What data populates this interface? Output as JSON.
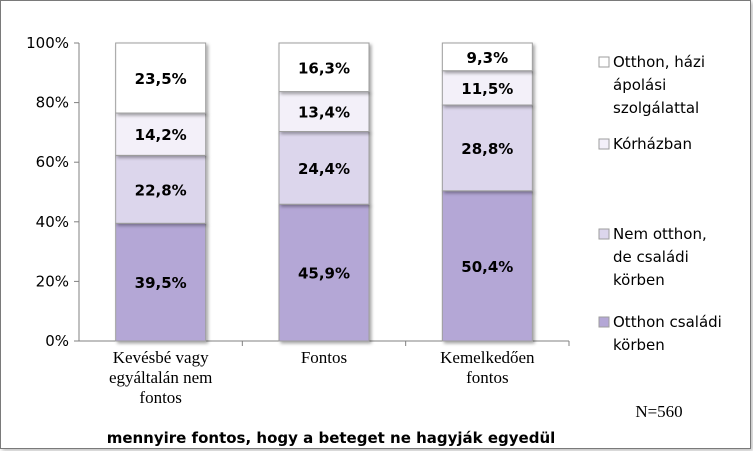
{
  "chart_data": {
    "type": "bar",
    "stacked": true,
    "categories": [
      [
        "Kevésbé vagy",
        "egyáltalán nem",
        "fontos"
      ],
      [
        "Fontos"
      ],
      [
        "Kemelkedően",
        "fontos"
      ]
    ],
    "series": [
      {
        "name": "Otthon családi körben",
        "values": [
          39.5,
          45.9,
          50.4
        ],
        "labels": [
          "39,5%",
          "45,9%",
          "50,4%"
        ],
        "color": "#b4a7d6"
      },
      {
        "name": "Nem otthon, de családi körben",
        "values": [
          22.8,
          24.4,
          28.8
        ],
        "labels": [
          "22,8%",
          "24,4%",
          "28,8%"
        ],
        "color": "#dcd6ec"
      },
      {
        "name": "Kórházban",
        "values": [
          14.2,
          13.4,
          11.5
        ],
        "labels": [
          "14,2%",
          "13,4%",
          "11,5%"
        ],
        "color": "#f3f0f9"
      },
      {
        "name": "Otthon, házi ápolási szolgálattal",
        "values": [
          23.5,
          16.3,
          9.3
        ],
        "labels": [
          "23,5%",
          "16,3%",
          "9,3%"
        ],
        "color": "#ffffff"
      }
    ],
    "ylim": [
      0,
      100
    ],
    "yticks": [
      "0%",
      "20%",
      "40%",
      "60%",
      "80%",
      "100%"
    ],
    "xlabel": "mennyire fontos, hogy a beteget ne hagyják egyedül",
    "ylabel": "",
    "legend": {
      "position": "right",
      "entries": [
        [
          "Otthon, házi",
          "ápolási",
          "szolgálattal"
        ],
        [
          "Kórházban"
        ],
        [
          "Nem otthon,",
          "de családi",
          "körben"
        ],
        [
          "Otthon családi",
          "körben"
        ]
      ]
    },
    "note": "N=560",
    "grid": false
  }
}
